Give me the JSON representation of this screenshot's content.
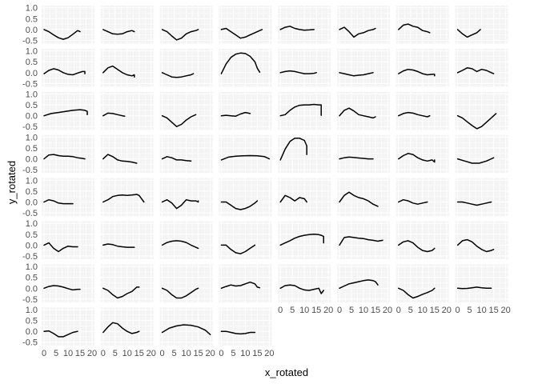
{
  "chart_data": {
    "type": "line",
    "facet_layout": "wrap",
    "columns": 8,
    "xlabel": "x_rotated",
    "ylabel": "y_rotated",
    "xlim": [
      -1,
      21
    ],
    "ylim": [
      -0.65,
      1.1
    ],
    "x_ticks": [
      0,
      5,
      10,
      15,
      20
    ],
    "y_ticks": [
      -0.5,
      0.0,
      0.5,
      1.0
    ],
    "y_tick_labels": [
      "-0.5",
      "0.0",
      "0.5",
      "1.0"
    ],
    "x_tick_labels": [
      "0",
      "5",
      "10",
      "15",
      "20"
    ],
    "grid": true,
    "series": [
      {
        "x": [
          0,
          2,
          4,
          6,
          8,
          10,
          12,
          14,
          15
        ],
        "y": [
          0,
          -0.1,
          -0.25,
          -0.38,
          -0.45,
          -0.38,
          -0.22,
          -0.05,
          -0.1
        ]
      },
      {
        "x": [
          0,
          2,
          4,
          6,
          8,
          10,
          12,
          13
        ],
        "y": [
          0,
          -0.1,
          -0.2,
          -0.22,
          -0.2,
          -0.1,
          -0.05,
          -0.1
        ]
      },
      {
        "x": [
          0,
          2,
          4,
          6,
          8,
          10,
          12,
          14,
          15
        ],
        "y": [
          0,
          -0.1,
          -0.3,
          -0.48,
          -0.4,
          -0.2,
          -0.1,
          -0.05,
          0
        ]
      },
      {
        "x": [
          0,
          2,
          4,
          6,
          8,
          10,
          12,
          14,
          16,
          17
        ],
        "y": [
          0,
          0.05,
          -0.1,
          -0.25,
          -0.4,
          -0.35,
          -0.25,
          -0.15,
          -0.05,
          0
        ]
      },
      {
        "x": [
          0,
          2,
          4,
          6,
          8,
          10,
          12,
          14
        ],
        "y": [
          0,
          0.1,
          0.15,
          0.05,
          0,
          -0.03,
          -0.02,
          0
        ]
      },
      {
        "x": [
          0,
          2,
          4,
          6,
          8,
          10,
          12,
          14,
          15
        ],
        "y": [
          0,
          0.1,
          -0.1,
          -0.35,
          -0.2,
          -0.15,
          -0.05,
          0,
          0.05
        ]
      },
      {
        "x": [
          0,
          2,
          4,
          6,
          8,
          10,
          12,
          13
        ],
        "y": [
          0,
          0.2,
          0.25,
          0.15,
          0.1,
          -0.05,
          -0.1,
          -0.15
        ]
      },
      {
        "x": [
          0,
          2,
          4,
          6,
          8,
          9,
          9.5
        ],
        "y": [
          0,
          -0.2,
          -0.35,
          -0.25,
          -0.15,
          -0.05,
          0
        ]
      },
      {
        "x": [
          0,
          2,
          4,
          6,
          8,
          10,
          12,
          14,
          16,
          17,
          17
        ],
        "y": [
          -0.05,
          0.1,
          0.18,
          0.12,
          0,
          -0.08,
          -0.1,
          -0.02,
          0.05,
          0.05,
          -0.05
        ]
      },
      {
        "x": [
          0,
          2,
          4,
          6,
          8,
          10,
          12,
          13,
          13
        ],
        "y": [
          0,
          0.22,
          0.3,
          0.15,
          0,
          -0.1,
          -0.15,
          -0.1,
          -0.2
        ]
      },
      {
        "x": [
          0,
          2,
          4,
          6,
          8,
          10,
          12,
          13
        ],
        "y": [
          0,
          -0.1,
          -0.2,
          -0.22,
          -0.2,
          -0.15,
          -0.1,
          -0.05
        ]
      },
      {
        "x": [
          0,
          2,
          4,
          6,
          8,
          10,
          12,
          14,
          15,
          16
        ],
        "y": [
          -0.05,
          0.4,
          0.7,
          0.85,
          0.9,
          0.88,
          0.75,
          0.5,
          0.2,
          0.02
        ]
      },
      {
        "x": [
          0,
          2,
          4,
          6,
          8,
          10,
          12,
          14,
          15
        ],
        "y": [
          0,
          0.05,
          0.08,
          0.05,
          0,
          -0.05,
          -0.05,
          -0.03,
          0
        ]
      },
      {
        "x": [
          0,
          2,
          4,
          6,
          8,
          10,
          12,
          14
        ],
        "y": [
          0,
          -0.05,
          -0.1,
          -0.15,
          -0.12,
          -0.1,
          -0.05,
          0
        ]
      },
      {
        "x": [
          0,
          2,
          4,
          6,
          8,
          10,
          12,
          14,
          15,
          15
        ],
        "y": [
          -0.05,
          0.08,
          0.15,
          0.12,
          0.05,
          -0.05,
          -0.1,
          -0.08,
          -0.08,
          -0.15
        ]
      },
      {
        "x": [
          0,
          2,
          4,
          6,
          8,
          10,
          12,
          14,
          15
        ],
        "y": [
          0,
          0.1,
          0.22,
          0.18,
          0.05,
          0.15,
          0.1,
          0,
          -0.05
        ]
      },
      {
        "x": [
          0,
          3,
          6,
          9,
          12,
          15,
          17,
          18,
          18
        ],
        "y": [
          0,
          0.1,
          0.15,
          0.2,
          0.25,
          0.28,
          0.25,
          0.2,
          0.05
        ]
      },
      {
        "x": [
          0,
          2,
          4,
          6,
          8,
          9
        ],
        "y": [
          0,
          0.12,
          0.1,
          0.05,
          0,
          -0.02
        ]
      },
      {
        "x": [
          0,
          2,
          4,
          6,
          8,
          10,
          12,
          14
        ],
        "y": [
          0,
          -0.1,
          -0.3,
          -0.5,
          -0.4,
          -0.2,
          -0.05,
          0.05
        ]
      },
      {
        "x": [
          0,
          2,
          4,
          6,
          8,
          10,
          12
        ],
        "y": [
          0,
          0.02,
          0,
          -0.02,
          0.08,
          0.15,
          0.1
        ]
      },
      {
        "x": [
          0,
          2,
          4,
          6,
          8,
          10,
          12,
          14,
          16,
          17,
          17
        ],
        "y": [
          0,
          0.05,
          0.25,
          0.4,
          0.48,
          0.5,
          0.5,
          0.52,
          0.5,
          0.5,
          0.02
        ]
      },
      {
        "x": [
          0,
          2,
          4,
          6,
          8,
          10,
          12,
          14,
          15
        ],
        "y": [
          0,
          0.25,
          0.35,
          0.22,
          0.05,
          0,
          -0.05,
          -0.1,
          -0.05
        ]
      },
      {
        "x": [
          0,
          2,
          4,
          6,
          8,
          10,
          12,
          13
        ],
        "y": [
          0,
          0.1,
          0.15,
          0.12,
          0.05,
          0,
          -0.05,
          0
        ]
      },
      {
        "x": [
          0,
          2,
          4,
          6,
          8,
          10,
          12,
          14,
          15,
          16
        ],
        "y": [
          0,
          -0.1,
          -0.28,
          -0.45,
          -0.6,
          -0.5,
          -0.3,
          -0.1,
          0,
          0.1
        ]
      },
      {
        "x": [
          0,
          2,
          4,
          6,
          8,
          10,
          12,
          14,
          16,
          17
        ],
        "y": [
          0,
          0.18,
          0.2,
          0.15,
          0.12,
          0.12,
          0.1,
          0.05,
          0.02,
          0
        ]
      },
      {
        "x": [
          0,
          2,
          4,
          6,
          8,
          10,
          12,
          14
        ],
        "y": [
          0,
          0.2,
          0.1,
          -0.05,
          -0.1,
          -0.12,
          -0.15,
          -0.2
        ]
      },
      {
        "x": [
          0,
          2,
          4,
          6,
          8,
          10,
          12
        ],
        "y": [
          0,
          0.1,
          0.05,
          -0.05,
          -0.05,
          -0.08,
          -0.1
        ]
      },
      {
        "x": [
          0,
          3,
          6,
          9,
          12,
          15,
          18,
          20
        ],
        "y": [
          -0.05,
          0.08,
          0.12,
          0.14,
          0.15,
          0.14,
          0.1,
          0
        ]
      },
      {
        "x": [
          0,
          2,
          4,
          6,
          8,
          10,
          11,
          11
        ],
        "y": [
          -0.05,
          0.45,
          0.8,
          0.95,
          0.95,
          0.85,
          0.6,
          0.2
        ]
      },
      {
        "x": [
          0,
          2,
          4,
          6,
          8,
          10,
          12,
          14
        ],
        "y": [
          0,
          0.05,
          0.08,
          0.06,
          0.04,
          0.02,
          0,
          0
        ]
      },
      {
        "x": [
          0,
          2,
          4,
          6,
          8,
          10,
          12,
          14,
          15,
          15
        ],
        "y": [
          0,
          0.15,
          0.25,
          0.2,
          0.05,
          -0.05,
          -0.1,
          -0.05,
          -0.15,
          -0.05
        ]
      },
      {
        "x": [
          0,
          3,
          6,
          9,
          12,
          15
        ],
        "y": [
          0,
          -0.1,
          -0.2,
          -0.2,
          -0.1,
          0.05
        ]
      },
      {
        "x": [
          0,
          2,
          4,
          6,
          8,
          10,
          12
        ],
        "y": [
          0,
          0.1,
          0.05,
          -0.05,
          -0.08,
          -0.08,
          -0.08
        ]
      },
      {
        "x": [
          0,
          2,
          4,
          6,
          8,
          10,
          12,
          14,
          15,
          16,
          17
        ],
        "y": [
          0,
          0.1,
          0.25,
          0.3,
          0.32,
          0.3,
          0.32,
          0.35,
          0.3,
          0.15,
          0
        ]
      },
      {
        "x": [
          0,
          2,
          4,
          6,
          8,
          10,
          12,
          14,
          15,
          15
        ],
        "y": [
          0,
          0.1,
          -0.05,
          -0.3,
          -0.15,
          0.1,
          0.05,
          0.05,
          0,
          0.05
        ]
      },
      {
        "x": [
          0,
          2,
          4,
          6,
          8,
          10,
          12,
          14,
          15
        ],
        "y": [
          0,
          0,
          -0.15,
          -0.3,
          -0.35,
          -0.3,
          -0.2,
          -0.05,
          0.05
        ]
      },
      {
        "x": [
          0,
          2,
          4,
          6,
          8,
          10,
          11,
          11
        ],
        "y": [
          0,
          0.3,
          0.2,
          0.05,
          0.2,
          0.15,
          0,
          0
        ]
      },
      {
        "x": [
          0,
          2,
          4,
          6,
          8,
          10,
          12,
          14,
          16
        ],
        "y": [
          0,
          0.3,
          0.45,
          0.3,
          0.2,
          0.15,
          0.05,
          -0.1,
          -0.2
        ]
      },
      {
        "x": [
          0,
          2,
          4,
          6,
          8,
          10,
          12
        ],
        "y": [
          0,
          0.1,
          0.05,
          -0.05,
          -0.1,
          -0.05,
          0
        ]
      },
      {
        "x": [
          0,
          2,
          4,
          6,
          8,
          10,
          12,
          14
        ],
        "y": [
          0,
          0,
          -0.05,
          -0.1,
          -0.15,
          -0.1,
          -0.05,
          0
        ]
      },
      {
        "x": [
          0,
          2,
          4,
          6,
          8,
          10,
          12,
          14
        ],
        "y": [
          0,
          0.1,
          -0.15,
          -0.3,
          -0.15,
          -0.05,
          -0.08,
          -0.08
        ]
      },
      {
        "x": [
          0,
          2,
          4,
          6,
          8,
          10,
          12,
          13
        ],
        "y": [
          0,
          0.05,
          0.02,
          -0.05,
          -0.08,
          -0.1,
          -0.1,
          -0.1
        ]
      },
      {
        "x": [
          0,
          2,
          4,
          6,
          8,
          10,
          12,
          14,
          15
        ],
        "y": [
          0,
          0.12,
          0.18,
          0.2,
          0.18,
          0.12,
          0,
          -0.1,
          -0.15
        ]
      },
      {
        "x": [
          0,
          2,
          4,
          6,
          8,
          10,
          12,
          14
        ],
        "y": [
          0,
          0,
          -0.2,
          -0.35,
          -0.4,
          -0.3,
          -0.15,
          0
        ]
      },
      {
        "x": [
          0,
          2,
          4,
          6,
          8,
          10,
          12,
          14,
          16,
          17,
          18,
          18
        ],
        "y": [
          0,
          0.1,
          0.2,
          0.32,
          0.4,
          0.45,
          0.48,
          0.5,
          0.48,
          0.45,
          0.4,
          0.1
        ]
      },
      {
        "x": [
          0,
          2,
          4,
          6,
          8,
          10,
          12,
          14,
          16,
          17,
          18
        ],
        "y": [
          0,
          0.35,
          0.38,
          0.35,
          0.32,
          0.3,
          0.25,
          0.22,
          0.18,
          0.2,
          0.22
        ]
      },
      {
        "x": [
          0,
          2,
          4,
          6,
          8,
          10,
          12,
          14,
          15
        ],
        "y": [
          0,
          0.15,
          0.2,
          0.1,
          -0.1,
          -0.25,
          -0.3,
          -0.25,
          -0.15
        ]
      },
      {
        "x": [
          0,
          2,
          4,
          6,
          8,
          10,
          12,
          14,
          15
        ],
        "y": [
          0,
          0.2,
          0.25,
          0.15,
          -0.05,
          -0.2,
          -0.3,
          -0.25,
          -0.2
        ]
      },
      {
        "x": [
          0,
          2,
          4,
          6,
          8,
          10,
          12,
          14,
          15
        ],
        "y": [
          0,
          0.08,
          0.12,
          0.1,
          0.05,
          -0.02,
          -0.08,
          -0.05,
          -0.05
        ]
      },
      {
        "x": [
          0,
          2,
          4,
          6,
          8,
          10,
          12,
          14,
          15
        ],
        "y": [
          0,
          -0.1,
          -0.3,
          -0.45,
          -0.38,
          -0.25,
          -0.15,
          0.05,
          0.05
        ]
      },
      {
        "x": [
          0,
          2,
          4,
          6,
          8,
          10,
          12,
          14,
          15
        ],
        "y": [
          0,
          -0.1,
          -0.3,
          -0.45,
          -0.45,
          -0.35,
          -0.2,
          -0.05,
          0
        ]
      },
      {
        "x": [
          0,
          2,
          4,
          6,
          8,
          10,
          12,
          14,
          15,
          16
        ],
        "y": [
          0,
          0.08,
          0.15,
          0.1,
          0.12,
          0.2,
          0.28,
          0.2,
          0.05,
          0.02
        ]
      },
      {
        "x": [
          0,
          2,
          4,
          6,
          8,
          10,
          12,
          14,
          16,
          17,
          18
        ],
        "y": [
          0,
          0.12,
          0.15,
          0.12,
          0,
          -0.08,
          -0.1,
          -0.05,
          0,
          -0.25,
          -0.1
        ]
      },
      {
        "x": [
          0,
          2,
          4,
          6,
          8,
          10,
          12,
          14,
          15,
          16
        ],
        "y": [
          0,
          0.1,
          0.2,
          0.25,
          0.3,
          0.35,
          0.38,
          0.35,
          0.3,
          0.15
        ]
      },
      {
        "x": [
          0,
          2,
          4,
          6,
          8,
          10,
          12,
          14,
          15
        ],
        "y": [
          0,
          -0.1,
          -0.3,
          -0.45,
          -0.38,
          -0.28,
          -0.2,
          -0.1,
          0
        ]
      },
      {
        "x": [
          0,
          2,
          4,
          6,
          8,
          10,
          12,
          14
        ],
        "y": [
          0,
          -0.02,
          -0.01,
          0.02,
          0.05,
          0.02,
          0,
          0
        ]
      },
      {
        "x": [
          0,
          2,
          4,
          6,
          8,
          10,
          12,
          14
        ],
        "y": [
          0,
          0.02,
          -0.1,
          -0.25,
          -0.25,
          -0.15,
          -0.05,
          0
        ]
      },
      {
        "x": [
          0,
          2,
          4,
          6,
          8,
          10,
          12,
          14,
          15
        ],
        "y": [
          -0.05,
          0.2,
          0.4,
          0.35,
          0.15,
          0,
          -0.1,
          -0.05,
          0
        ]
      },
      {
        "x": [
          0,
          3,
          6,
          9,
          12,
          15,
          18,
          20
        ],
        "y": [
          -0.05,
          0.15,
          0.25,
          0.3,
          0.28,
          0.2,
          0.05,
          -0.15
        ]
      },
      {
        "x": [
          0,
          2,
          4,
          6,
          8,
          10,
          12,
          14
        ],
        "y": [
          0,
          0,
          -0.05,
          -0.1,
          -0.12,
          -0.1,
          -0.05,
          -0.05
        ]
      }
    ]
  }
}
